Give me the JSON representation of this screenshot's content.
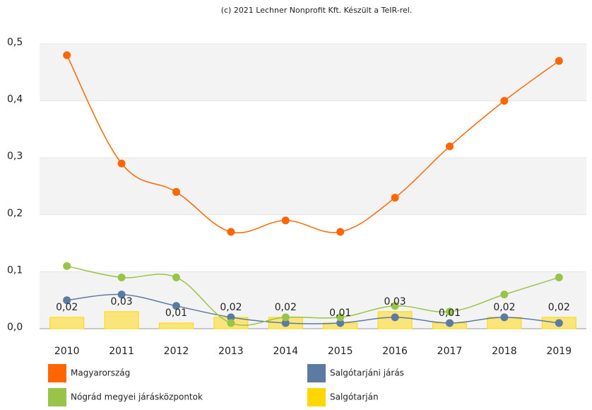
{
  "chart_data": {
    "type": "line",
    "title": "(c) 2021 Lechner Nonprofit Kft. Készült a TeIR-rel.",
    "categories": [
      "2010",
      "2011",
      "2012",
      "2013",
      "2014",
      "2015",
      "2016",
      "2017",
      "2018",
      "2019"
    ],
    "ylim": [
      0,
      0.5
    ],
    "yticks": [
      {
        "value": 0,
        "label": "0,0"
      },
      {
        "value": 0.1,
        "label": "0,1"
      },
      {
        "value": 0.2,
        "label": "0,2"
      },
      {
        "value": 0.3,
        "label": "0,3"
      },
      {
        "value": 0.4,
        "label": "0,4"
      },
      {
        "value": 0.5,
        "label": "0,5"
      }
    ],
    "grid": true,
    "legend": "bottom",
    "series": [
      {
        "name": "Magyarország",
        "type": "line",
        "color": "#ff6600",
        "values": [
          0.48,
          0.29,
          0.24,
          0.17,
          0.19,
          0.17,
          0.23,
          0.32,
          0.4,
          0.47
        ]
      },
      {
        "name": "Salgótarjáni járás",
        "type": "line",
        "color": "#5c7ba3",
        "values": [
          0.05,
          0.06,
          0.04,
          0.02,
          0.01,
          0.01,
          0.02,
          0.01,
          0.02,
          0.01
        ]
      },
      {
        "name": "Nógrád megyei járásközpontok",
        "type": "line",
        "color": "#99c44a",
        "values": [
          0.11,
          0.09,
          0.09,
          0.01,
          0.02,
          0.02,
          0.04,
          0.03,
          0.06,
          0.09
        ]
      },
      {
        "name": "Salgótarján",
        "type": "bar",
        "color": "#ffd700",
        "values": [
          0.02,
          0.03,
          0.01,
          0.02,
          0.02,
          0.01,
          0.03,
          0.01,
          0.02,
          0.02
        ],
        "value_labels": [
          "0,02",
          "0,03",
          "0,01",
          "0,02",
          "0,02",
          "0,01",
          "0,03",
          "0,01",
          "0,02",
          "0,02"
        ]
      }
    ]
  }
}
